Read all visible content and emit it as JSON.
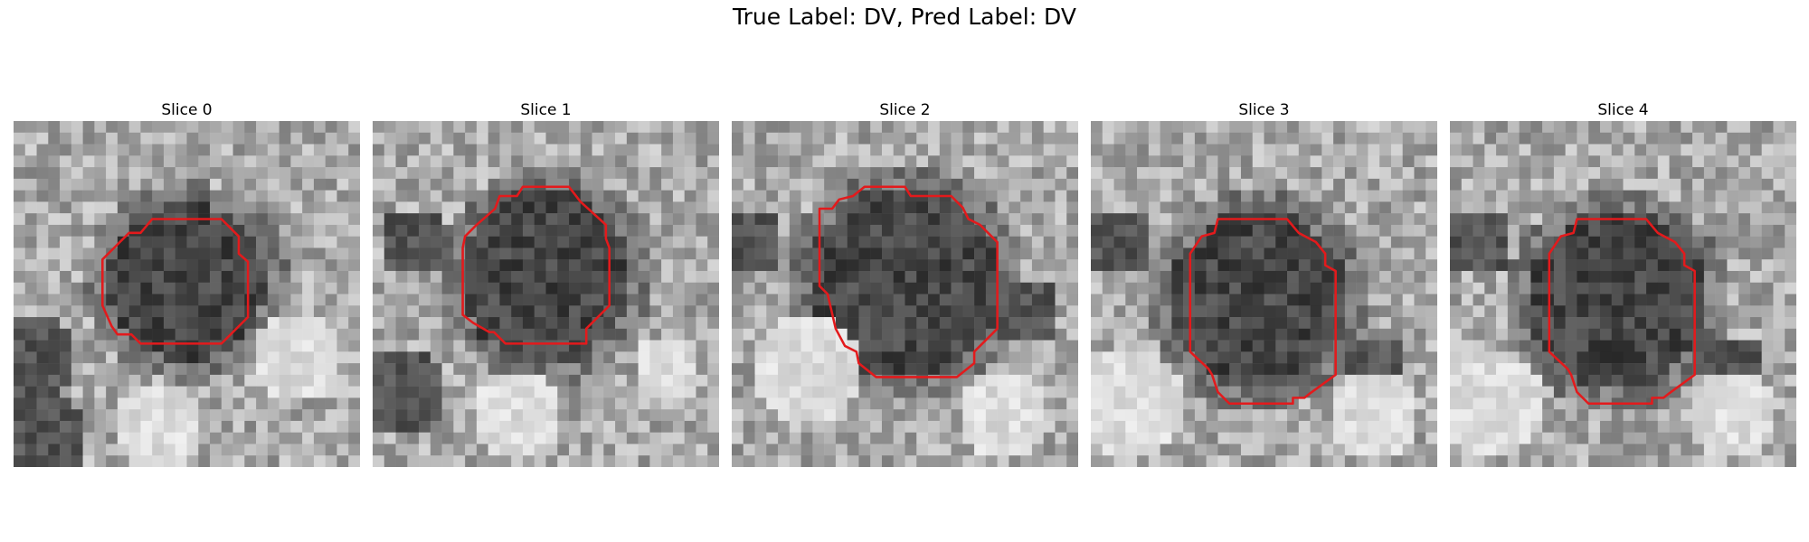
{
  "figure": {
    "title": "True Label: DV, Pred Label: DV"
  },
  "colors": {
    "contour": "#e31a1c"
  },
  "grid_size": 30,
  "slices": [
    {
      "title": "Slice 0",
      "blob_center": [
        15,
        14
      ],
      "blob_radius": 6.8,
      "seed": 11,
      "dark_blobs": [
        [
          2,
          27,
          4
        ],
        [
          1,
          20,
          4
        ]
      ],
      "bright_blobs": [
        [
          12,
          26,
          4
        ],
        [
          24,
          20,
          4
        ]
      ],
      "contour": [
        [
          12,
          8.5
        ],
        [
          18,
          8.5
        ],
        [
          19.5,
          10
        ],
        [
          19.5,
          11.5
        ],
        [
          20.3,
          12.2
        ],
        [
          20.3,
          17
        ],
        [
          18,
          19.3
        ],
        [
          11,
          19.3
        ],
        [
          10.2,
          18.5
        ],
        [
          9,
          18.5
        ],
        [
          8.5,
          17.8
        ],
        [
          7.7,
          16
        ],
        [
          7.7,
          12
        ],
        [
          10,
          9.7
        ],
        [
          11,
          9.7
        ]
      ]
    },
    {
      "title": "Slice 1",
      "blob_center": [
        15,
        13.5
      ],
      "blob_radius": 7.5,
      "seed": 23,
      "dark_blobs": [
        [
          2,
          23,
          4
        ],
        [
          3,
          10,
          3
        ]
      ],
      "bright_blobs": [
        [
          12,
          25,
          4
        ],
        [
          25,
          21,
          3
        ]
      ],
      "contour": [
        [
          13,
          5.7
        ],
        [
          17,
          5.7
        ],
        [
          18,
          7
        ],
        [
          20.2,
          9
        ],
        [
          20.2,
          10.2
        ],
        [
          20.5,
          11
        ],
        [
          20.5,
          16
        ],
        [
          18.5,
          18
        ],
        [
          18.5,
          19.3
        ],
        [
          11.5,
          19.3
        ],
        [
          10.5,
          18.3
        ],
        [
          10.1,
          18.3
        ],
        [
          8.7,
          17.5
        ],
        [
          7.8,
          16.8
        ],
        [
          7.8,
          11
        ],
        [
          8,
          10
        ],
        [
          9,
          9
        ],
        [
          10.6,
          7.6
        ],
        [
          11,
          6.5
        ],
        [
          12.5,
          6.5
        ]
      ]
    },
    {
      "title": "Slice 2",
      "blob_center": [
        15,
        14
      ],
      "blob_radius": 8.4,
      "seed": 37,
      "dark_blobs": [
        [
          1,
          10,
          3
        ],
        [
          25,
          16,
          3
        ]
      ],
      "bright_blobs": [
        [
          6,
          21,
          5
        ],
        [
          23,
          25,
          4
        ]
      ],
      "contour": [
        [
          11.5,
          5.7
        ],
        [
          15,
          5.7
        ],
        [
          15.5,
          6.5
        ],
        [
          19,
          6.5
        ],
        [
          20,
          7.5
        ],
        [
          20.5,
          8.5
        ],
        [
          21.5,
          9
        ],
        [
          23,
          10.5
        ],
        [
          23,
          18
        ],
        [
          21,
          20
        ],
        [
          21,
          21
        ],
        [
          19.5,
          22.2
        ],
        [
          12.5,
          22.2
        ],
        [
          11,
          21
        ],
        [
          10.8,
          20
        ],
        [
          9.8,
          19.5
        ],
        [
          9,
          18
        ],
        [
          8.3,
          15
        ],
        [
          7.6,
          14.3
        ],
        [
          7.6,
          7.6
        ],
        [
          8.7,
          7.6
        ],
        [
          9.3,
          6.8
        ],
        [
          10.5,
          6.5
        ]
      ]
    },
    {
      "title": "Slice 3",
      "blob_center": [
        14.5,
        15.5
      ],
      "blob_radius": 7.8,
      "seed": 51,
      "dark_blobs": [
        [
          2,
          10,
          3
        ],
        [
          24,
          21,
          3
        ]
      ],
      "bright_blobs": [
        [
          3,
          24,
          5
        ],
        [
          24,
          25,
          4
        ]
      ],
      "contour": [
        [
          11,
          8.5
        ],
        [
          17,
          8.5
        ],
        [
          18,
          9.7
        ],
        [
          19.5,
          10.5
        ],
        [
          20.3,
          11.5
        ],
        [
          20.3,
          12.5
        ],
        [
          21.2,
          13
        ],
        [
          21.2,
          22
        ],
        [
          19,
          23.6
        ],
        [
          18.5,
          24
        ],
        [
          17.5,
          24
        ],
        [
          17.5,
          24.5
        ],
        [
          12,
          24.5
        ],
        [
          11,
          23.5
        ],
        [
          10.5,
          22
        ],
        [
          10.2,
          21.5
        ],
        [
          8.6,
          20
        ],
        [
          8.6,
          11.5
        ],
        [
          9.6,
          10
        ],
        [
          10.7,
          9.7
        ]
      ]
    },
    {
      "title": "Slice 4",
      "blob_center": [
        14.5,
        15.5
      ],
      "blob_radius": 7.8,
      "seed": 67,
      "dark_blobs": [
        [
          2,
          10,
          3
        ],
        [
          24,
          21,
          3
        ]
      ],
      "bright_blobs": [
        [
          3,
          24,
          5
        ],
        [
          24,
          25,
          4
        ]
      ],
      "contour": [
        [
          11,
          8.5
        ],
        [
          17,
          8.5
        ],
        [
          18,
          9.7
        ],
        [
          19.5,
          10.5
        ],
        [
          20.3,
          11.5
        ],
        [
          20.3,
          12.5
        ],
        [
          21.2,
          13
        ],
        [
          21.2,
          22
        ],
        [
          19,
          23.6
        ],
        [
          18.5,
          24
        ],
        [
          17.5,
          24
        ],
        [
          17.5,
          24.5
        ],
        [
          12,
          24.5
        ],
        [
          11,
          23.5
        ],
        [
          10.5,
          22
        ],
        [
          10.2,
          21.5
        ],
        [
          8.6,
          20
        ],
        [
          8.6,
          11.5
        ],
        [
          9.6,
          10
        ],
        [
          10.7,
          9.7
        ]
      ]
    }
  ]
}
